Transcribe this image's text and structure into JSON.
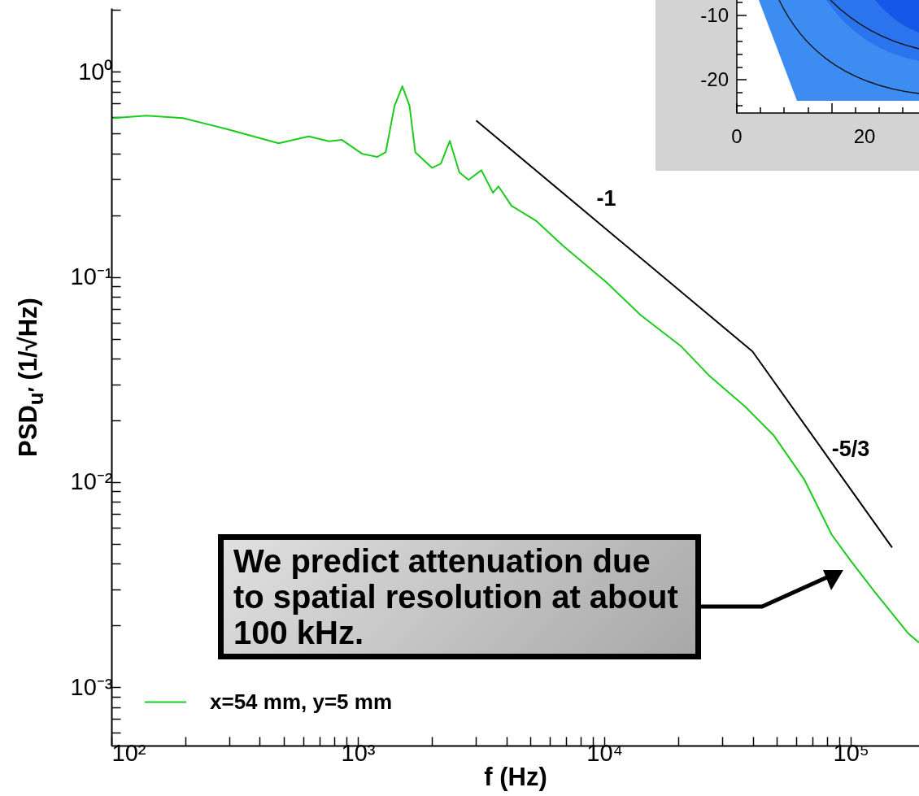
{
  "chart_data": [
    {
      "type": "line",
      "xlabel": "f (Hz)",
      "ylabel": "PSD$_{u′}$ (1/√Hz)",
      "log": "xy",
      "grid": false,
      "legend": "bottom left",
      "marker": "none",
      "line_style": "solid",
      "xlim": [
        100,
        189000
      ],
      "ylim": [
        0.00052,
        2.04
      ],
      "xticks": [
        {
          "value": 100,
          "label": "10²"
        },
        {
          "value": 200,
          "label": null
        },
        {
          "value": 300,
          "label": null
        },
        {
          "value": 400,
          "label": null
        },
        {
          "value": 500,
          "label": null
        },
        {
          "value": 600,
          "label": null
        },
        {
          "value": 700,
          "label": null
        },
        {
          "value": 800,
          "label": null
        },
        {
          "value": 900,
          "label": null
        },
        {
          "value": 1000,
          "label": "10³"
        },
        {
          "value": 2000,
          "label": null
        },
        {
          "value": 3000,
          "label": null
        },
        {
          "value": 4000,
          "label": null
        },
        {
          "value": 5000,
          "label": null
        },
        {
          "value": 6000,
          "label": null
        },
        {
          "value": 7000,
          "label": null
        },
        {
          "value": 8000,
          "label": null
        },
        {
          "value": 9000,
          "label": null
        },
        {
          "value": 10000,
          "label": "10⁴"
        },
        {
          "value": 20000,
          "label": null
        },
        {
          "value": 30000,
          "label": null
        },
        {
          "value": 40000,
          "label": null
        },
        {
          "value": 50000,
          "label": null
        },
        {
          "value": 60000,
          "label": null
        },
        {
          "value": 70000,
          "label": null
        },
        {
          "value": 80000,
          "label": null
        },
        {
          "value": 90000,
          "label": null
        },
        {
          "value": 100000,
          "label": "10⁵"
        }
      ],
      "yticks": [
        {
          "value": 0.0006,
          "label": null
        },
        {
          "value": 0.0007,
          "label": null
        },
        {
          "value": 0.0008,
          "label": null
        },
        {
          "value": 0.0009,
          "label": null
        },
        {
          "value": 0.001,
          "label": "10⁻³"
        },
        {
          "value": 0.002,
          "label": null
        },
        {
          "value": 0.003,
          "label": null
        },
        {
          "value": 0.004,
          "label": null
        },
        {
          "value": 0.005,
          "label": null
        },
        {
          "value": 0.006,
          "label": null
        },
        {
          "value": 0.007,
          "label": null
        },
        {
          "value": 0.008,
          "label": null
        },
        {
          "value": 0.009,
          "label": null
        },
        {
          "value": 0.01,
          "label": "10⁻²"
        },
        {
          "value": 0.02,
          "label": null
        },
        {
          "value": 0.03,
          "label": null
        },
        {
          "value": 0.04,
          "label": null
        },
        {
          "value": 0.05,
          "label": null
        },
        {
          "value": 0.06,
          "label": null
        },
        {
          "value": 0.07,
          "label": null
        },
        {
          "value": 0.08,
          "label": null
        },
        {
          "value": 0.09,
          "label": null
        },
        {
          "value": 0.1,
          "label": "10⁻¹"
        },
        {
          "value": 0.2,
          "label": null
        },
        {
          "value": 0.3,
          "label": null
        },
        {
          "value": 0.4,
          "label": null
        },
        {
          "value": 0.5,
          "label": null
        },
        {
          "value": 0.6,
          "label": null
        },
        {
          "value": 0.7,
          "label": null
        },
        {
          "value": 0.8,
          "label": null
        },
        {
          "value": 0.9,
          "label": null
        },
        {
          "value": 1,
          "label": "10⁰"
        },
        {
          "value": 2,
          "label": null
        }
      ],
      "series": [
        {
          "name": "x=54 mm, y=5 mm",
          "color": "#1ccc1c",
          "x": [
            101.5,
            138.6,
            195,
            294,
            477,
            632,
            764,
            862,
            1040,
            1196,
            1297,
            1408,
            1515,
            1620,
            1709,
            2000,
            2170,
            2360,
            2580,
            2810,
            3170,
            3530,
            3720,
            4200,
            5270,
            6780,
            10110,
            14060,
            20400,
            26500,
            37300,
            48800,
            64700,
            83500,
            99700,
            126000,
            171000,
            189000
          ],
          "values": [
            0.594,
            0.61,
            0.594,
            0.525,
            0.448,
            0.484,
            0.458,
            0.465,
            0.398,
            0.384,
            0.405,
            0.682,
            0.849,
            0.682,
            0.405,
            0.34,
            0.356,
            0.46,
            0.323,
            0.297,
            0.331,
            0.257,
            0.276,
            0.222,
            0.188,
            0.142,
            0.0949,
            0.065,
            0.0461,
            0.0332,
            0.0233,
            0.0168,
            0.0103,
            0.00556,
            0.00415,
            0.00288,
            0.00183,
            0.00165
          ]
        },
        {
          "type": "line",
          "color": "#000000",
          "x": [
            3020,
            39900,
            147000
          ],
          "values": [
            0.578,
            0.0433,
            0.0048
          ]
        }
      ],
      "annotations": [
        "-1",
        "-5/3",
        "We predict attenuation due to spatial resolution at about 100 kHz."
      ]
    },
    {
      "type": "other",
      "annotations": [
        "-10",
        "-20",
        "0",
        "20"
      ]
    }
  ]
}
